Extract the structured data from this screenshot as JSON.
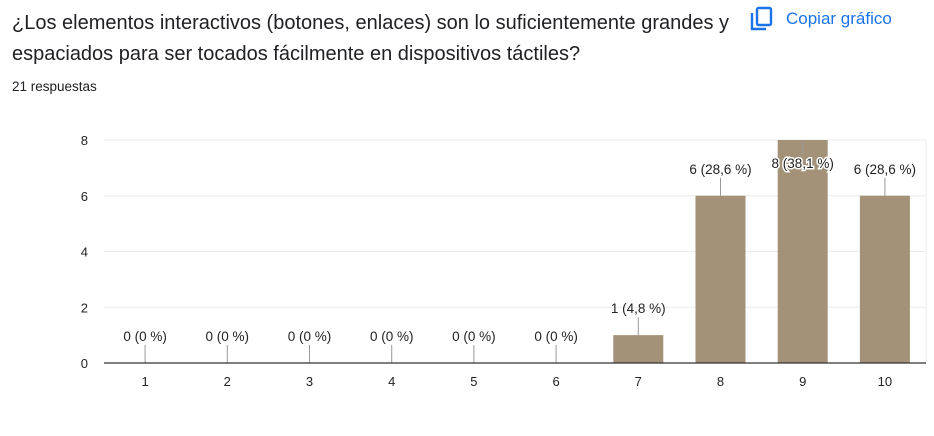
{
  "question": "¿Los elementos interactivos (botones, enlaces) son lo suficientemente grandes y espaciados para ser tocados fácilmente en dispositivos táctiles?",
  "responses": "21 respuestas",
  "copy_button": {
    "label": "Copiar gráfico",
    "icon": "copy-icon"
  },
  "colors": {
    "bar": "#a39277",
    "accent": "#1a73e8"
  },
  "chart_data": {
    "type": "bar",
    "title": "",
    "xlabel": "",
    "ylabel": "",
    "categories": [
      "1",
      "2",
      "3",
      "4",
      "5",
      "6",
      "7",
      "8",
      "9",
      "10"
    ],
    "values": [
      0,
      0,
      0,
      0,
      0,
      0,
      1,
      6,
      8,
      6
    ],
    "data_labels": [
      "0 (0 %)",
      "0 (0 %)",
      "0 (0 %)",
      "0 (0 %)",
      "0 (0 %)",
      "0 (0 %)",
      "1 (4,8 %)",
      "6 (28,6 %)",
      "8 (38,1 %)",
      "6 (28,6 %)"
    ],
    "ylim": [
      0,
      8
    ],
    "yticks": [
      0,
      2,
      4,
      6,
      8
    ],
    "grid": true
  }
}
